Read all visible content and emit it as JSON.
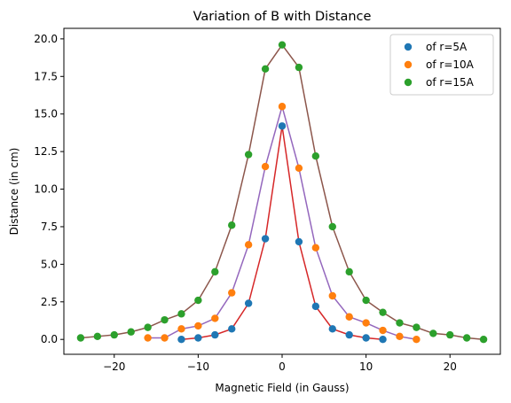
{
  "chart_data": {
    "type": "scatter",
    "title": "Variation of B with Distance",
    "xlabel": "Magnetic Field (in Gauss)",
    "ylabel": "Distance (in cm)",
    "xlim": [
      -26,
      26
    ],
    "ylim": [
      -0.99,
      20.7
    ],
    "xticks": [
      -20,
      -10,
      0,
      10,
      20
    ],
    "xtick_labels": [
      "−20",
      "−10",
      "0",
      "10",
      "20"
    ],
    "yticks": [
      0,
      2.5,
      5,
      7.5,
      10,
      12.5,
      15,
      17.5,
      20
    ],
    "ytick_labels": [
      "0.0",
      "2.5",
      "5.0",
      "7.5",
      "10.0",
      "12.5",
      "15.0",
      "17.5",
      "20.0"
    ],
    "grid": false,
    "legend_position": "top-right",
    "series": [
      {
        "name": "of r=5A",
        "marker_color": "#1f77b4",
        "line_color": "#d62728",
        "x": [
          -12,
          -10,
          -8,
          -6,
          -4,
          -2,
          0,
          2,
          4,
          6,
          8,
          10,
          12
        ],
        "y": [
          0.0,
          0.1,
          0.3,
          0.7,
          2.4,
          6.7,
          14.2,
          6.5,
          2.2,
          0.7,
          0.3,
          0.1,
          0.0
        ]
      },
      {
        "name": "of r=10A",
        "marker_color": "#ff7f0e",
        "line_color": "#9467bd",
        "x": [
          -16,
          -14,
          -12,
          -10,
          -8,
          -6,
          -4,
          -2,
          0,
          2,
          4,
          6,
          8,
          10,
          12,
          14,
          16
        ],
        "y": [
          0.1,
          0.1,
          0.7,
          0.9,
          1.4,
          3.1,
          6.3,
          11.5,
          15.5,
          11.4,
          6.1,
          2.9,
          1.5,
          1.1,
          0.6,
          0.2,
          0.0
        ]
      },
      {
        "name": "of r=15A",
        "marker_color": "#2ca02c",
        "line_color": "#8c564b",
        "x": [
          -24,
          -22,
          -20,
          -18,
          -16,
          -14,
          -12,
          -10,
          -8,
          -6,
          -4,
          -2,
          0,
          2,
          4,
          6,
          8,
          10,
          12,
          14,
          16,
          18,
          20,
          22,
          24
        ],
        "y": [
          0.1,
          0.2,
          0.3,
          0.5,
          0.8,
          1.3,
          1.7,
          2.6,
          4.5,
          7.6,
          12.3,
          18.0,
          19.6,
          18.1,
          12.2,
          7.5,
          4.5,
          2.6,
          1.8,
          1.1,
          0.8,
          0.4,
          0.3,
          0.1,
          0.0
        ]
      }
    ]
  }
}
